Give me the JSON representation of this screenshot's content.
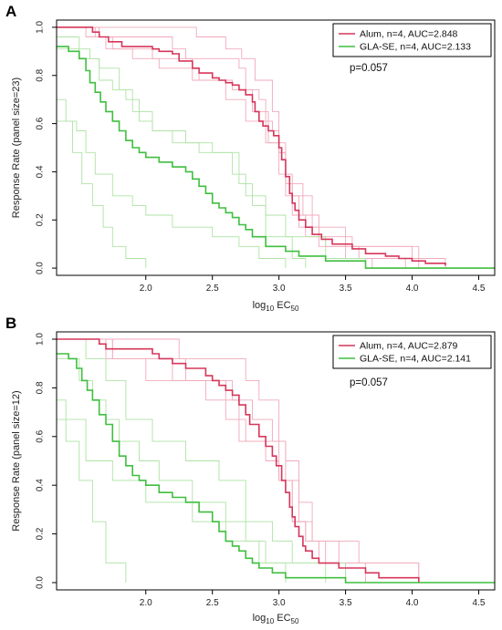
{
  "colors": {
    "alum": "#d6365a",
    "alum_light": "#f0a9bb",
    "glase": "#3fbf3f",
    "glase_light": "#aee3a4"
  },
  "chart_data": [
    {
      "type": "line",
      "panel": "A",
      "xlabel_main": "log",
      "xlabel_sub": "10",
      "xlabel_rest": " EC",
      "xlabel_sub2": "50",
      "ylabel": "Response Rate (panel size=23)",
      "xlim": [
        1.33,
        4.62
      ],
      "ylim": [
        -0.03,
        1.03
      ],
      "xticks": [
        2.0,
        2.5,
        3.0,
        3.5,
        4.0,
        4.5
      ],
      "xtick_labels": [
        "2.0",
        "2.5",
        "3.0",
        "3.5",
        "4.0",
        "4.5"
      ],
      "yticks": [
        0.0,
        0.2,
        0.4,
        0.6,
        0.8,
        1.0
      ],
      "ytick_labels": [
        "0.0",
        "0.2",
        "0.4",
        "0.6",
        "0.8",
        "1.0"
      ],
      "annotation": "p=0.057",
      "legend_position": "top-right",
      "legend": [
        {
          "label": "Alum, n=4, AUC=2.848",
          "color_key": "alum"
        },
        {
          "label": "GLA-SE, n=4, AUC=2.133",
          "color_key": "glase"
        }
      ],
      "series": [
        {
          "name": "Alum, n=4, AUC=2.848",
          "color_key": "alum",
          "role": "mean",
          "x": [
            1.33,
            1.55,
            1.6,
            1.65,
            1.72,
            1.82,
            2.0,
            2.05,
            2.1,
            2.2,
            2.25,
            2.35,
            2.4,
            2.5,
            2.55,
            2.6,
            2.65,
            2.7,
            2.75,
            2.8,
            2.82,
            2.85,
            2.88,
            2.92,
            2.96,
            3.0,
            3.02,
            3.05,
            3.08,
            3.1,
            3.12,
            3.15,
            3.2,
            3.25,
            3.32,
            3.4,
            3.55,
            3.65,
            3.8,
            3.9,
            4.0,
            4.1,
            4.25
          ],
          "y": [
            1.0,
            1.0,
            0.98,
            0.96,
            0.94,
            0.92,
            0.92,
            0.91,
            0.9,
            0.89,
            0.86,
            0.83,
            0.81,
            0.79,
            0.78,
            0.77,
            0.76,
            0.74,
            0.72,
            0.69,
            0.65,
            0.61,
            0.59,
            0.57,
            0.55,
            0.5,
            0.45,
            0.38,
            0.31,
            0.27,
            0.24,
            0.2,
            0.17,
            0.14,
            0.12,
            0.1,
            0.08,
            0.06,
            0.05,
            0.04,
            0.03,
            0.02,
            0.01
          ]
        },
        {
          "name": "",
          "color_key": "alum_light",
          "role": "replicate",
          "x": [
            1.33,
            1.55,
            1.65,
            1.8,
            2.2,
            2.3,
            2.55,
            2.7,
            2.75,
            2.85,
            2.9,
            2.95,
            3.0,
            3.05,
            3.1,
            3.2,
            3.35,
            3.6,
            3.95
          ],
          "y": [
            1.0,
            1.0,
            0.96,
            0.96,
            0.91,
            0.87,
            0.87,
            0.83,
            0.74,
            0.7,
            0.61,
            0.57,
            0.48,
            0.35,
            0.22,
            0.13,
            0.09,
            0.04,
            0.0
          ]
        },
        {
          "name": "",
          "color_key": "alum_light",
          "role": "replicate",
          "x": [
            1.33,
            1.62,
            1.75,
            2.05,
            2.35,
            2.65,
            2.8,
            2.92,
            3.05,
            3.15,
            3.3,
            3.5,
            3.7
          ],
          "y": [
            1.0,
            0.96,
            0.91,
            0.87,
            0.78,
            0.74,
            0.65,
            0.52,
            0.3,
            0.17,
            0.09,
            0.04,
            0.0
          ]
        },
        {
          "name": "",
          "color_key": "alum_light",
          "role": "replicate",
          "x": [
            1.33,
            2.25,
            2.38,
            2.6,
            2.72,
            2.82,
            2.95,
            3.0,
            3.05,
            3.18,
            3.3,
            3.55,
            4.05
          ],
          "y": [
            1.0,
            1.0,
            0.96,
            0.91,
            0.87,
            0.78,
            0.65,
            0.48,
            0.35,
            0.22,
            0.13,
            0.09,
            0.0
          ]
        },
        {
          "name": "",
          "color_key": "alum_light",
          "role": "replicate",
          "x": [
            1.33,
            1.55,
            1.7,
            1.9,
            2.1,
            2.4,
            2.6,
            2.75,
            2.9,
            3.0,
            3.1,
            3.25,
            3.5,
            4.0,
            4.25
          ],
          "y": [
            1.0,
            0.96,
            0.91,
            0.87,
            0.83,
            0.78,
            0.7,
            0.61,
            0.52,
            0.39,
            0.3,
            0.17,
            0.09,
            0.04,
            0.0
          ]
        },
        {
          "name": "GLA-SE, n=4, AUC=2.133",
          "color_key": "glase",
          "role": "mean",
          "x": [
            1.33,
            1.42,
            1.5,
            1.55,
            1.58,
            1.62,
            1.66,
            1.7,
            1.75,
            1.8,
            1.85,
            1.9,
            1.95,
            2.0,
            2.1,
            2.2,
            2.3,
            2.35,
            2.4,
            2.45,
            2.5,
            2.55,
            2.6,
            2.65,
            2.7,
            2.75,
            2.8,
            2.9,
            3.05,
            3.15,
            3.35,
            3.65,
            4.62
          ],
          "y": [
            0.92,
            0.9,
            0.87,
            0.82,
            0.77,
            0.73,
            0.69,
            0.65,
            0.61,
            0.57,
            0.53,
            0.5,
            0.48,
            0.46,
            0.44,
            0.42,
            0.4,
            0.37,
            0.34,
            0.31,
            0.27,
            0.25,
            0.23,
            0.21,
            0.18,
            0.16,
            0.13,
            0.09,
            0.07,
            0.05,
            0.03,
            0.0,
            0.0
          ]
        },
        {
          "name": "",
          "color_key": "glase_light",
          "role": "replicate",
          "x": [
            1.33,
            1.5,
            1.58,
            1.65,
            1.75,
            1.85,
            1.95,
            2.05,
            2.3,
            2.5,
            2.7,
            2.8,
            2.9,
            3.1,
            3.2
          ],
          "y": [
            0.96,
            0.91,
            0.87,
            0.78,
            0.74,
            0.7,
            0.61,
            0.57,
            0.52,
            0.48,
            0.35,
            0.26,
            0.13,
            0.04,
            0.0
          ]
        },
        {
          "name": "",
          "color_key": "glase_light",
          "role": "replicate",
          "x": [
            1.33,
            1.4,
            1.45,
            1.52,
            1.6,
            1.68,
            1.75,
            1.85,
            2.0
          ],
          "y": [
            0.7,
            0.61,
            0.48,
            0.35,
            0.26,
            0.17,
            0.09,
            0.04,
            0.0
          ]
        },
        {
          "name": "",
          "color_key": "glase_light",
          "role": "replicate",
          "x": [
            1.33,
            1.48,
            1.55,
            1.62,
            1.75,
            1.9,
            2.0,
            2.2,
            2.5,
            2.7,
            2.85,
            3.05
          ],
          "y": [
            0.61,
            0.57,
            0.48,
            0.39,
            0.3,
            0.26,
            0.22,
            0.17,
            0.13,
            0.09,
            0.04,
            0.0
          ]
        },
        {
          "name": "",
          "color_key": "glase_light",
          "role": "replicate",
          "x": [
            1.33,
            1.5,
            1.65,
            1.8,
            1.9,
            2.05,
            2.2,
            2.4,
            2.65,
            2.75,
            2.9,
            3.05,
            3.35,
            3.65
          ],
          "y": [
            0.91,
            0.87,
            0.83,
            0.74,
            0.65,
            0.57,
            0.52,
            0.48,
            0.39,
            0.3,
            0.22,
            0.13,
            0.04,
            0.0
          ]
        }
      ]
    },
    {
      "type": "line",
      "panel": "B",
      "xlabel_main": "log",
      "xlabel_sub": "10",
      "xlabel_rest": " EC",
      "xlabel_sub2": "50",
      "ylabel": "Response Rate (panel size=12)",
      "xlim": [
        1.33,
        4.62
      ],
      "ylim": [
        -0.03,
        1.03
      ],
      "xticks": [
        2.0,
        2.5,
        3.0,
        3.5,
        4.0,
        4.5
      ],
      "xtick_labels": [
        "2.0",
        "2.5",
        "3.0",
        "3.5",
        "4.0",
        "4.5"
      ],
      "yticks": [
        0.0,
        0.2,
        0.4,
        0.6,
        0.8,
        1.0
      ],
      "ytick_labels": [
        "0.0",
        "0.2",
        "0.4",
        "0.6",
        "0.8",
        "1.0"
      ],
      "annotation": "p=0.057",
      "legend_position": "top-right",
      "legend": [
        {
          "label": "Alum, n=4, AUC=2.879",
          "color_key": "alum"
        },
        {
          "label": "GLA-SE, n=4, AUC=2.141",
          "color_key": "glase"
        }
      ],
      "series": [
        {
          "name": "Alum, n=4, AUC=2.879",
          "color_key": "alum",
          "role": "mean",
          "x": [
            1.33,
            1.6,
            1.65,
            1.7,
            2.05,
            2.1,
            2.2,
            2.3,
            2.45,
            2.5,
            2.55,
            2.6,
            2.65,
            2.7,
            2.75,
            2.78,
            2.85,
            2.9,
            2.95,
            2.98,
            3.02,
            3.05,
            3.08,
            3.1,
            3.12,
            3.15,
            3.18,
            3.2,
            3.25,
            3.3,
            3.45,
            3.65,
            3.75,
            3.95,
            4.05
          ],
          "y": [
            1.0,
            1.0,
            0.98,
            0.96,
            0.94,
            0.92,
            0.9,
            0.88,
            0.85,
            0.83,
            0.81,
            0.79,
            0.77,
            0.73,
            0.69,
            0.65,
            0.6,
            0.56,
            0.52,
            0.48,
            0.42,
            0.37,
            0.31,
            0.27,
            0.23,
            0.19,
            0.15,
            0.13,
            0.1,
            0.08,
            0.06,
            0.04,
            0.02,
            0.02,
            0.0
          ]
        },
        {
          "name": "",
          "color_key": "alum_light",
          "role": "replicate",
          "x": [
            1.33,
            1.6,
            1.75,
            2.05,
            2.3,
            2.55,
            2.65,
            2.8,
            2.95,
            3.05,
            3.15,
            3.25,
            3.45,
            3.65
          ],
          "y": [
            1.0,
            1.0,
            0.92,
            0.92,
            0.83,
            0.83,
            0.75,
            0.67,
            0.58,
            0.42,
            0.25,
            0.17,
            0.08,
            0.0
          ]
        },
        {
          "name": "",
          "color_key": "alum_light",
          "role": "replicate",
          "x": [
            1.33,
            1.75,
            2.0,
            2.45,
            2.6,
            2.7,
            2.9,
            3.0,
            3.1,
            3.2,
            3.35,
            3.5
          ],
          "y": [
            1.0,
            0.92,
            0.83,
            0.83,
            0.75,
            0.58,
            0.58,
            0.42,
            0.25,
            0.17,
            0.08,
            0.0
          ]
        },
        {
          "name": "",
          "color_key": "alum_light",
          "role": "replicate",
          "x": [
            1.33,
            2.15,
            2.25,
            2.55,
            2.75,
            2.85,
            3.0,
            3.05,
            3.15,
            3.25,
            3.6,
            4.05
          ],
          "y": [
            1.0,
            1.0,
            0.92,
            0.92,
            0.83,
            0.75,
            0.58,
            0.5,
            0.33,
            0.17,
            0.08,
            0.0
          ]
        },
        {
          "name": "",
          "color_key": "alum_light",
          "role": "replicate",
          "x": [
            1.33,
            1.7,
            1.9,
            2.2,
            2.45,
            2.6,
            2.75,
            2.9,
            3.0,
            3.1,
            3.2,
            3.3,
            3.65,
            4.05
          ],
          "y": [
            1.0,
            0.92,
            0.92,
            0.83,
            0.75,
            0.67,
            0.58,
            0.5,
            0.42,
            0.25,
            0.17,
            0.08,
            0.08,
            0.0
          ]
        },
        {
          "name": "GLA-SE, n=4, AUC=2.141",
          "color_key": "glase",
          "role": "mean",
          "x": [
            1.33,
            1.42,
            1.48,
            1.52,
            1.56,
            1.6,
            1.65,
            1.7,
            1.75,
            1.8,
            1.85,
            1.9,
            1.95,
            2.0,
            2.1,
            2.2,
            2.3,
            2.4,
            2.5,
            2.55,
            2.6,
            2.65,
            2.7,
            2.75,
            2.8,
            2.85,
            2.95,
            3.05,
            3.25,
            3.5,
            4.62
          ],
          "y": [
            0.94,
            0.92,
            0.88,
            0.83,
            0.79,
            0.75,
            0.69,
            0.65,
            0.58,
            0.52,
            0.48,
            0.44,
            0.42,
            0.4,
            0.37,
            0.35,
            0.33,
            0.29,
            0.25,
            0.21,
            0.17,
            0.15,
            0.13,
            0.1,
            0.08,
            0.06,
            0.04,
            0.02,
            0.02,
            0.0,
            0.0
          ]
        },
        {
          "name": "",
          "color_key": "glase_light",
          "role": "replicate",
          "x": [
            1.33,
            1.5,
            1.6,
            1.7,
            1.8,
            1.95,
            2.1,
            2.35,
            2.6,
            2.75,
            2.9,
            3.05
          ],
          "y": [
            0.92,
            0.83,
            0.75,
            0.67,
            0.58,
            0.5,
            0.42,
            0.33,
            0.25,
            0.17,
            0.08,
            0.0
          ]
        },
        {
          "name": "",
          "color_key": "glase_light",
          "role": "replicate",
          "x": [
            1.33,
            1.4,
            1.5,
            1.6,
            1.7,
            1.85
          ],
          "y": [
            0.75,
            0.58,
            0.42,
            0.25,
            0.08,
            0.0
          ]
        },
        {
          "name": "",
          "color_key": "glase_light",
          "role": "replicate",
          "x": [
            1.33,
            1.55,
            1.75,
            2.0,
            2.35,
            2.6,
            2.85,
            3.15,
            3.5
          ],
          "y": [
            0.67,
            0.5,
            0.42,
            0.33,
            0.25,
            0.17,
            0.08,
            0.08,
            0.0
          ]
        },
        {
          "name": "",
          "color_key": "glase_light",
          "role": "replicate",
          "x": [
            1.33,
            1.55,
            1.7,
            1.85,
            2.05,
            2.3,
            2.55,
            2.75,
            2.95,
            3.1,
            3.35
          ],
          "y": [
            1.0,
            0.92,
            0.83,
            0.67,
            0.58,
            0.5,
            0.42,
            0.25,
            0.17,
            0.08,
            0.0
          ]
        }
      ]
    }
  ]
}
